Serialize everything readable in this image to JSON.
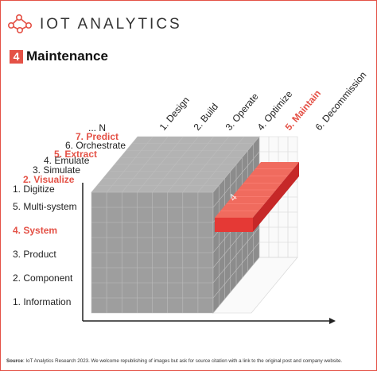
{
  "brand": {
    "name": "IOT ANALYTICS",
    "logo_icon": "network-nodes-icon",
    "accent": "#e45146"
  },
  "header": {
    "badge": "4",
    "title": "Maintenance"
  },
  "x_axis": [
    {
      "label": "1. Design",
      "highlight": false
    },
    {
      "label": "2. Build",
      "highlight": false
    },
    {
      "label": "3. Operate",
      "highlight": false
    },
    {
      "label": "4. Optimize",
      "highlight": false
    },
    {
      "label": "5. Maintain",
      "highlight": true
    },
    {
      "label": "6. Decommission",
      "highlight": false
    }
  ],
  "depth_axis": [
    {
      "label": "1. Digitize",
      "highlight": false
    },
    {
      "label": "2. Visualize",
      "highlight": true
    },
    {
      "label": "3. Simulate",
      "highlight": false
    },
    {
      "label": "4. Emulate",
      "highlight": false
    },
    {
      "label": "5. Extract",
      "highlight": true
    },
    {
      "label": "6. Orchestrate",
      "highlight": false
    },
    {
      "label": "7. Predict",
      "highlight": true
    },
    {
      "label": "... N",
      "highlight": false
    }
  ],
  "y_axis": [
    {
      "label": "5. Multi-system",
      "highlight": false
    },
    {
      "label": "4. System",
      "highlight": true
    },
    {
      "label": "3. Product",
      "highlight": false
    },
    {
      "label": "2. Component",
      "highlight": false
    },
    {
      "label": "1. Information",
      "highlight": false
    }
  ],
  "highlight_block_label": "4",
  "footer": {
    "source_label": "Source",
    "text": ": IoT Analytics Research 2023. We welcome republishing of images but ask for source citation with a link to the original post and company website."
  }
}
